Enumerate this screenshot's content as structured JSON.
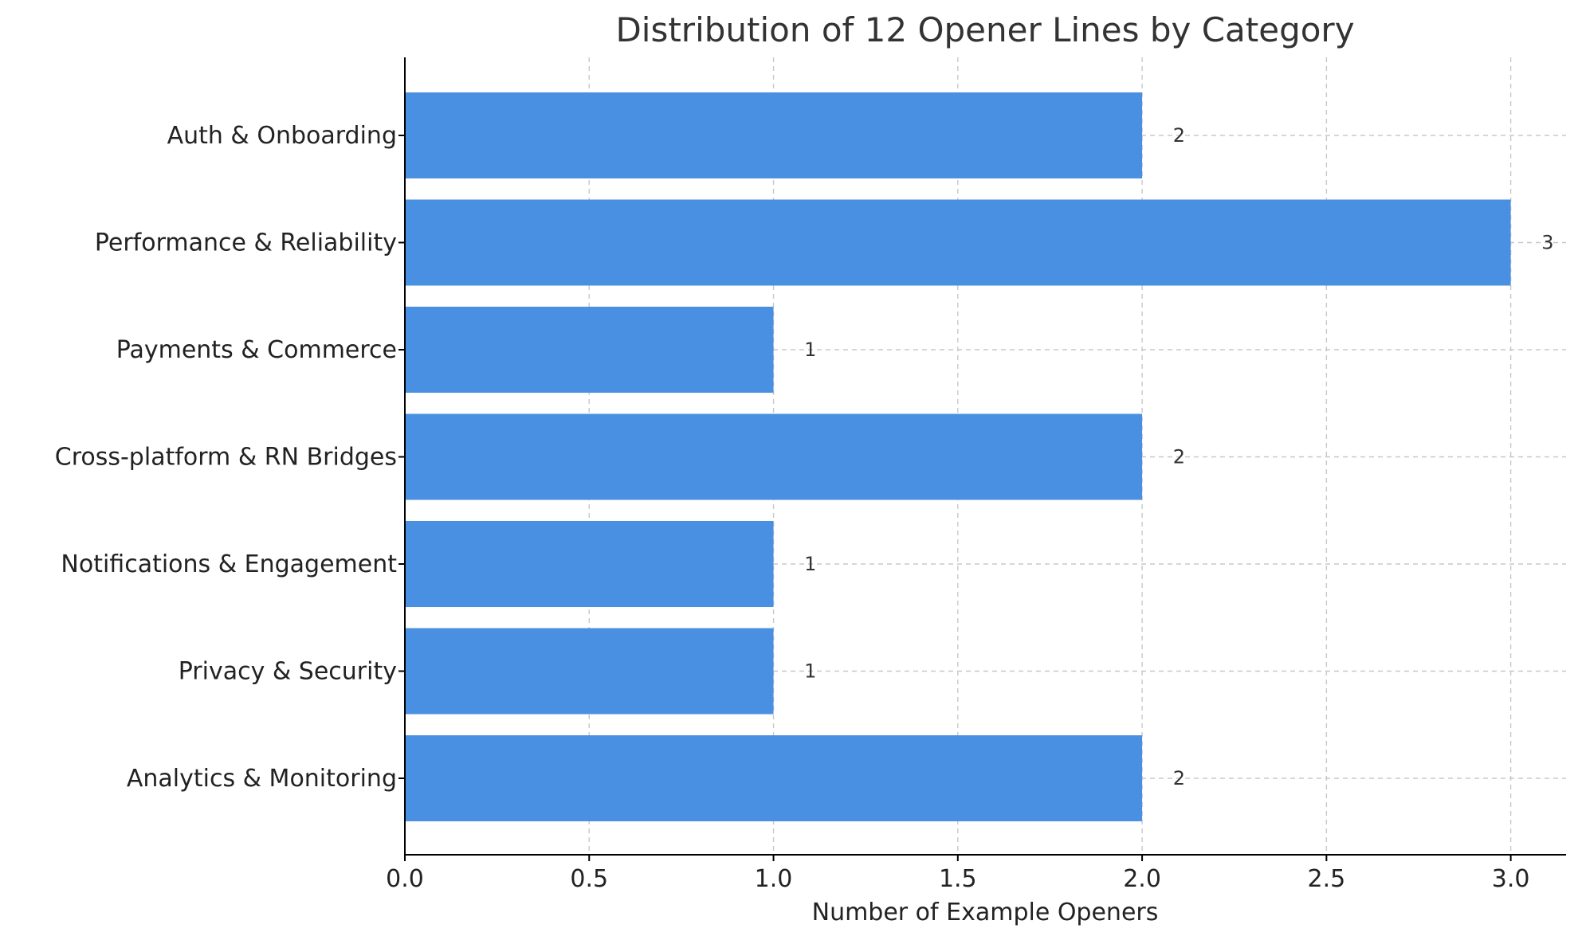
{
  "chart_data": {
    "type": "bar",
    "orientation": "horizontal",
    "title": "Distribution of 12 Opener Lines by Category",
    "xlabel": "Number of Example Openers",
    "ylabel": "",
    "categories": [
      "Auth & Onboarding",
      "Performance & Reliability",
      "Payments & Commerce",
      "Cross-platform & RN Bridges",
      "Notifications & Engagement",
      "Privacy & Security",
      "Analytics & Monitoring"
    ],
    "values": [
      2,
      3,
      1,
      2,
      1,
      1,
      2
    ],
    "data_labels": [
      "2",
      "3",
      "1",
      "2",
      "1",
      "1",
      "2"
    ],
    "xlim": [
      0,
      3.15
    ],
    "x_ticks": [
      0,
      0.5,
      1,
      1.5,
      2,
      2.5,
      3
    ],
    "x_tick_labels": [
      "0.0",
      "0.5",
      "1.0",
      "1.5",
      "2.0",
      "2.5",
      "3.0"
    ],
    "grid": true,
    "grid_style": "dashed",
    "bar_color": "#4a90e2",
    "text_color": "#333333",
    "legend": "none"
  }
}
